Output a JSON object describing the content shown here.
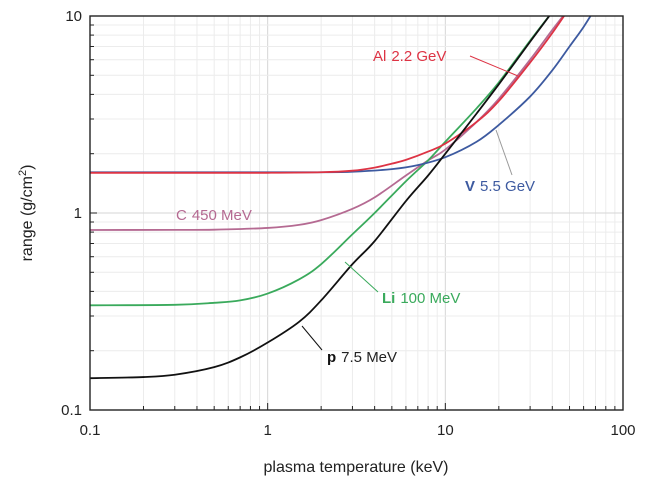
{
  "chart_data": {
    "type": "line",
    "title": "",
    "xlabel": "plasma temperature (keV)",
    "ylabel_main": "range (g/cm",
    "ylabel_sup": "2",
    "ylabel_close": ")",
    "x_scale": "log",
    "y_scale": "log",
    "xlim": [
      0.1,
      100
    ],
    "ylim": [
      0.1,
      10
    ],
    "grid": true,
    "x_ticks": [
      {
        "value": 0.1,
        "label": "0.1"
      },
      {
        "value": 1,
        "label": "1"
      },
      {
        "value": 10,
        "label": "10"
      },
      {
        "value": 100,
        "label": "100"
      }
    ],
    "y_ticks": [
      {
        "value": 0.1,
        "label": "0.1"
      },
      {
        "value": 1,
        "label": "1"
      },
      {
        "value": 10,
        "label": "10"
      }
    ],
    "series": [
      {
        "name": "p 7.5 MeV",
        "symbol": "p",
        "energy": "7.5 MeV",
        "color": "#111111",
        "x": [
          0.1,
          0.2,
          0.3,
          0.5,
          0.7,
          1,
          1.5,
          2,
          3,
          4,
          6,
          8,
          10,
          15,
          20,
          30,
          40,
          50
        ],
        "y": [
          0.145,
          0.147,
          0.151,
          0.165,
          0.185,
          0.22,
          0.28,
          0.36,
          0.55,
          0.72,
          1.15,
          1.55,
          2.0,
          3.2,
          4.5,
          7.4,
          10.5,
          14
        ]
      },
      {
        "name": "Li 100 MeV",
        "symbol": "Li",
        "energy": "100 MeV",
        "color": "#3aaa5c",
        "x": [
          0.1,
          0.3,
          0.5,
          0.7,
          1,
          1.5,
          2,
          3,
          4,
          6,
          8,
          10,
          15,
          20,
          30,
          40
        ],
        "y": [
          0.34,
          0.342,
          0.35,
          0.36,
          0.39,
          0.46,
          0.55,
          0.78,
          1.0,
          1.45,
          1.85,
          2.3,
          3.4,
          4.6,
          7.5,
          10.5
        ]
      },
      {
        "name": "C 450 MeV",
        "symbol": "C",
        "energy": "450 MeV",
        "color": "#b56a92",
        "x": [
          0.1,
          0.3,
          0.5,
          1,
          1.5,
          2,
          3,
          4,
          6,
          8,
          10,
          15,
          20,
          30,
          40,
          50
        ],
        "y": [
          0.82,
          0.821,
          0.823,
          0.84,
          0.87,
          0.92,
          1.05,
          1.2,
          1.55,
          1.85,
          2.1,
          2.9,
          3.8,
          6.0,
          8.5,
          11
        ]
      },
      {
        "name": "Al 2.2 GeV",
        "symbol": "Al",
        "energy": "2.2 GeV",
        "color": "#dd3344",
        "x": [
          0.1,
          0.5,
          1,
          2,
          3,
          4,
          5,
          6,
          8,
          10,
          15,
          20,
          30,
          40,
          50
        ],
        "y": [
          1.6,
          1.6,
          1.6,
          1.61,
          1.64,
          1.7,
          1.78,
          1.86,
          2.05,
          2.25,
          2.9,
          3.7,
          5.8,
          8.2,
          11
        ]
      },
      {
        "name": "V 5.5 GeV",
        "symbol": "V",
        "energy": "5.5 GeV",
        "color": "#3d5aa0",
        "x": [
          0.1,
          0.5,
          1,
          2,
          3,
          5,
          7,
          10,
          15,
          20,
          30,
          40,
          50,
          60,
          70
        ],
        "y": [
          1.61,
          1.61,
          1.61,
          1.61,
          1.62,
          1.67,
          1.75,
          1.92,
          2.3,
          2.8,
          3.9,
          5.3,
          7.0,
          8.8,
          11
        ]
      }
    ]
  }
}
